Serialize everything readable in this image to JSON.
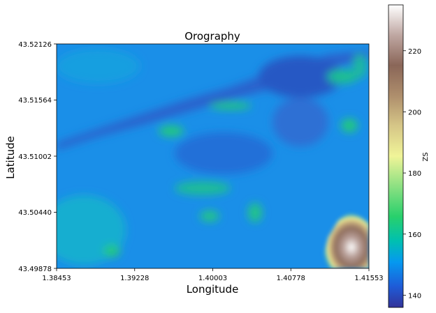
{
  "chart_data": {
    "type": "heatmap",
    "title": "Orography",
    "xlabel": "Longitude",
    "ylabel": "Latitude",
    "xlim": [
      1.38453,
      1.41553
    ],
    "ylim": [
      43.49878,
      43.52126
    ],
    "xticks": [
      "1.38453",
      "1.39228",
      "1.40003",
      "1.40778",
      "1.41553"
    ],
    "yticks": [
      "43.49878",
      "43.50440",
      "43.51002",
      "43.51564",
      "43.52126"
    ],
    "colorbar": {
      "label": "ZS",
      "range": [
        136,
        235
      ],
      "ticks": [
        "140",
        "160",
        "180",
        "200",
        "220"
      ],
      "tick_values": [
        140,
        160,
        180,
        200,
        220
      ],
      "colormap": "terrain"
    },
    "grid": false,
    "features": [
      {
        "kind": "background",
        "value": 152
      },
      {
        "kind": "valley-band",
        "value": 144
      },
      {
        "kind": "valley-upper-right",
        "value": 140
      },
      {
        "kind": "ridge-green",
        "value": 160
      },
      {
        "kind": "hill-lower-right",
        "value": 230
      }
    ]
  }
}
